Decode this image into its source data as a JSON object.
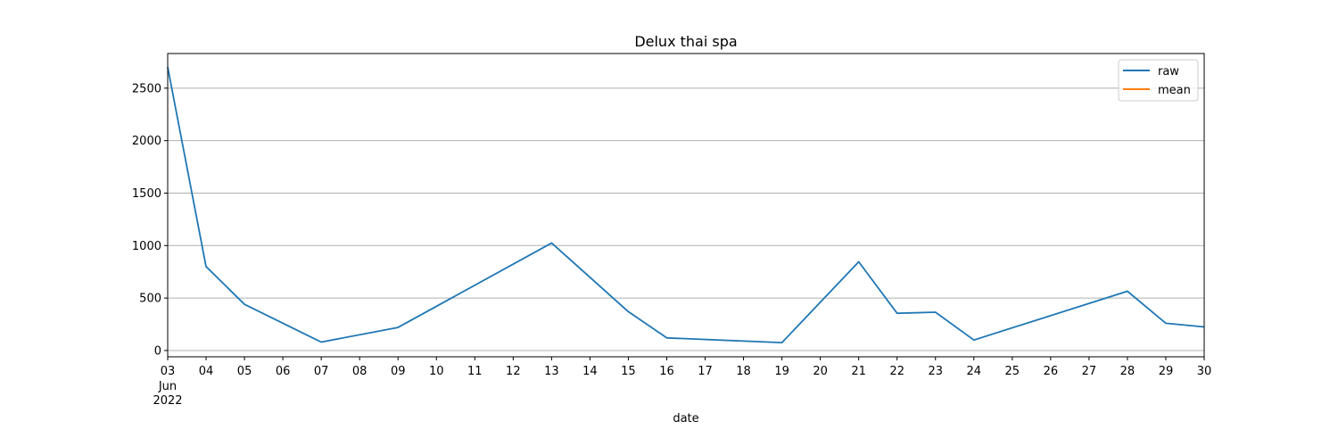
{
  "chart_data": {
    "type": "line",
    "title": "Delux thai spa",
    "xlabel": "date",
    "ylabel": "",
    "x_tick_labels": [
      "03",
      "04",
      "05",
      "06",
      "07",
      "08",
      "09",
      "10",
      "11",
      "12",
      "13",
      "14",
      "15",
      "16",
      "17",
      "18",
      "19",
      "20",
      "21",
      "22",
      "23",
      "24",
      "25",
      "26",
      "27",
      "28",
      "29",
      "30"
    ],
    "x_secondary_labels": [
      "Jun",
      "2022"
    ],
    "y_ticks": [
      0,
      500,
      1000,
      1500,
      2000,
      2500
    ],
    "ylim": [
      -60,
      2830
    ],
    "xlim": [
      "2022-06-03",
      "2022-06-30"
    ],
    "grid": "horizontal",
    "legend_position": "top-right",
    "series": [
      {
        "name": "raw",
        "color": "#1f77b4",
        "points": [
          {
            "x": "2022-06-03",
            "y": 2700
          },
          {
            "x": "2022-06-04",
            "y": 800
          },
          {
            "x": "2022-06-05",
            "y": 440
          },
          {
            "x": "2022-06-07",
            "y": 80
          },
          {
            "x": "2022-06-09",
            "y": 220
          },
          {
            "x": "2022-06-13",
            "y": 1025
          },
          {
            "x": "2022-06-15",
            "y": 370
          },
          {
            "x": "2022-06-16",
            "y": 120
          },
          {
            "x": "2022-06-19",
            "y": 75
          },
          {
            "x": "2022-06-21",
            "y": 845
          },
          {
            "x": "2022-06-22",
            "y": 355
          },
          {
            "x": "2022-06-23",
            "y": 365
          },
          {
            "x": "2022-06-24",
            "y": 100
          },
          {
            "x": "2022-06-28",
            "y": 565
          },
          {
            "x": "2022-06-29",
            "y": 260
          },
          {
            "x": "2022-06-30",
            "y": 225
          }
        ]
      },
      {
        "name": "mean",
        "color": "#ff7f0e",
        "points": []
      }
    ]
  }
}
